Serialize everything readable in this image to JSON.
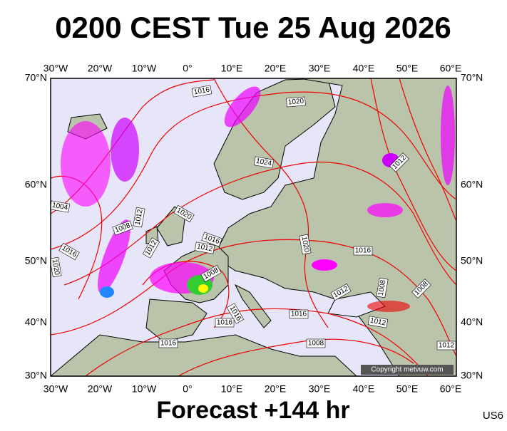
{
  "title": "0200 CEST Tue 25 Aug 2026",
  "footer": "Forecast +144 hr",
  "code": "US6",
  "copyright": "Copyright metvuw.com",
  "longitude_labels": [
    "30°W",
    "20°W",
    "10°W",
    "0°",
    "10°E",
    "20°E",
    "30°E",
    "40°E",
    "50°E",
    "60°E"
  ],
  "latitude_labels": [
    "70°N",
    "60°N",
    "50°N",
    "40°N",
    "30°N"
  ],
  "isobar_labels": [
    "1016",
    "1020",
    "1024",
    "1012",
    "1004",
    "1020",
    "1012",
    "1008",
    "1016",
    "1012",
    "1012",
    "1016",
    "1020",
    "1016",
    "1020",
    "1008",
    "1008",
    "1008",
    "1012",
    "1016",
    "1016",
    "1016",
    "1012",
    "1008",
    "1016",
    "1012"
  ]
}
